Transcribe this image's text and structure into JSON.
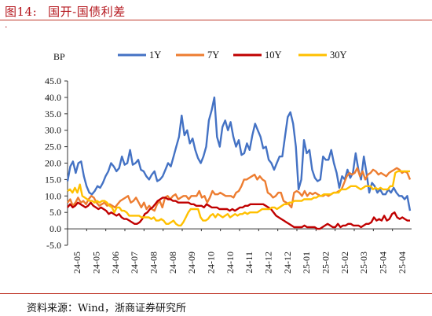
{
  "header": {
    "figure_no": "图14:",
    "title": "国开-国债利差"
  },
  "footer": {
    "source": "资料来源：Wind，浙商证券研究所"
  },
  "colors": {
    "title": "#b5171e",
    "rule": "#c0392b"
  },
  "chart_data": {
    "type": "line",
    "ylabel": "BP",
    "ylim": [
      -5,
      45
    ],
    "yticks": [
      "-5.0",
      "0.0",
      "5.0",
      "10.0",
      "15.0",
      "20.0",
      "25.0",
      "30.0",
      "35.0",
      "40.0",
      "45.0"
    ],
    "xticks": [
      "24-05",
      "24-05",
      "24-06",
      "24-07",
      "24-08",
      "24-08",
      "24-09",
      "24-10",
      "24-10",
      "24-11",
      "24-12",
      "24-12",
      "25-01",
      "25-02",
      "25-02",
      "25-03",
      "25-04",
      "25-04"
    ],
    "legend_position": "top",
    "grid": false,
    "series": [
      {
        "name": "1Y",
        "color": "#4472c4",
        "values": [
          14.5,
          19,
          20.5,
          17,
          20,
          20.5,
          16,
          13,
          11,
          10.5,
          11.5,
          13,
          12.5,
          14,
          16,
          17.5,
          20,
          19,
          17.5,
          18.5,
          22,
          19.5,
          20,
          24,
          19.5,
          20,
          21,
          18,
          17.5,
          16,
          15,
          16.5,
          17.5,
          14.5,
          15,
          16,
          18,
          20,
          19,
          22,
          25,
          28,
          34.5,
          28.5,
          30,
          26,
          27.5,
          24,
          21.5,
          20,
          22,
          25,
          33,
          36,
          40,
          28,
          25,
          31,
          33,
          30,
          32.5,
          28,
          25,
          27,
          22.5,
          23,
          26,
          24,
          28.5,
          32,
          30,
          28,
          24.5,
          25,
          21,
          20,
          18,
          20,
          22,
          22,
          28,
          34,
          35.5,
          32,
          25,
          12,
          15,
          27,
          23,
          24,
          18,
          15.5,
          14.5,
          15,
          22,
          21,
          21,
          24,
          20,
          17,
          12.5,
          16,
          15,
          18,
          15.5,
          17,
          23,
          18,
          15,
          22,
          17,
          11,
          14,
          13,
          11,
          12,
          10.5,
          10.5,
          12,
          11,
          12.5,
          11,
          10,
          10,
          9,
          10,
          5.5
        ]
      },
      {
        "name": "7Y",
        "color": "#ed7d31",
        "values": [
          8,
          9,
          7,
          8,
          9.5,
          8,
          8.5,
          7.5,
          9,
          10,
          9.5,
          8,
          7,
          7.5,
          8,
          7,
          7.5,
          7,
          6.5,
          7.5,
          8.5,
          9,
          9.5,
          10,
          8,
          8.5,
          9.5,
          8,
          6.5,
          8,
          6,
          7,
          6,
          5.5,
          7.5,
          8.5,
          6.5,
          9.5,
          10,
          9,
          10,
          10.5,
          9,
          9.5,
          10,
          10,
          9,
          10,
          10,
          10,
          11.5,
          9.5,
          10,
          8,
          9.5,
          11.5,
          10.5,
          10.5,
          11,
          10.5,
          10,
          10,
          10,
          9.5,
          11,
          11.5,
          13,
          15,
          15,
          15.5,
          16,
          16.5,
          15,
          16,
          15,
          14.5,
          11,
          10.5,
          9.5,
          10,
          11,
          11,
          8.5,
          8,
          7.5,
          6.5,
          11,
          11.5,
          11,
          10,
          11.5,
          10,
          11,
          10.5,
          11,
          10.5,
          10,
          10,
          10.5,
          10,
          10.5,
          11,
          11,
          11.5,
          12,
          14,
          16,
          17,
          16.5,
          17,
          18.5,
          16,
          17.5,
          15,
          16.5,
          17,
          18,
          17.5,
          16.5,
          17,
          16.5,
          16,
          17,
          17.5,
          18,
          18.5,
          18,
          17,
          17.5,
          17,
          15
        ]
      },
      {
        "name": "10Y",
        "color": "#c00000",
        "values": [
          6.5,
          7.5,
          6.5,
          7,
          8,
          7.5,
          7,
          6.5,
          7,
          8,
          7,
          6.5,
          6,
          6.5,
          6,
          5.5,
          4.5,
          5,
          4.5,
          4,
          4.5,
          3.5,
          3,
          3,
          2.5,
          2,
          1.5,
          1.5,
          2,
          3,
          4.5,
          5,
          6,
          6.5,
          7.5,
          8.5,
          9,
          9.5,
          9.5,
          9,
          9,
          8.5,
          8.5,
          8,
          8,
          8,
          8,
          8,
          7.5,
          7.5,
          7,
          7,
          7,
          6.5,
          7.5,
          7,
          6.5,
          6.5,
          6.5,
          6,
          6,
          6,
          6,
          5.5,
          6,
          5.5,
          6,
          6.5,
          6.5,
          7,
          7,
          7.5,
          7.5,
          7.5,
          7.5,
          7.5,
          7.5,
          7,
          6.5,
          6,
          5,
          4,
          3.5,
          3,
          2.5,
          2,
          1.5,
          1,
          0.5,
          0.5,
          0.5,
          0.5,
          1,
          0.5,
          0.5,
          0.5,
          0.5,
          0,
          0,
          0.5,
          1,
          1.5,
          1,
          0.5,
          0.5,
          1.5,
          0.5,
          1,
          1,
          1.5,
          1.5,
          1,
          1,
          1,
          0.5,
          1,
          1.5,
          1.5,
          2,
          3.5,
          2.5,
          3,
          2.5,
          4,
          2.5,
          3,
          4.5,
          5,
          3.5,
          3,
          3.5,
          3,
          2.5,
          2.5
        ]
      },
      {
        "name": "30Y",
        "color": "#ffc000",
        "values": [
          11.5,
          12,
          11,
          12.5,
          11,
          13.5,
          10,
          9.5,
          9,
          8.5,
          8.5,
          8,
          8.5,
          8,
          8.5,
          8.5,
          8,
          7,
          6.5,
          5,
          6.5,
          6.5,
          5.5,
          5.5,
          5,
          4,
          4,
          4,
          4,
          4,
          3.5,
          3.5,
          3.5,
          3.5,
          3,
          3.5,
          2.5,
          2.5,
          3,
          2.5,
          1.5,
          1.5,
          2,
          2.5,
          1.5,
          1,
          1,
          2,
          3.5,
          5,
          6,
          6,
          6,
          6,
          3.5,
          2.5,
          2.5,
          3,
          4,
          4.5,
          3.5,
          4.5,
          4,
          3.5,
          4,
          4.5,
          3.5,
          4,
          4.5,
          4,
          4.5,
          4.5,
          5,
          4.5,
          5,
          5,
          5,
          5,
          5.5,
          6,
          6,
          6,
          6,
          6.5,
          6.5,
          6,
          6.5,
          7,
          7.5,
          7.5,
          8,
          8,
          8.5,
          8.5,
          8.5,
          8.5,
          9,
          9,
          9,
          9,
          9.5,
          9.5,
          10,
          10,
          10.5,
          10.5,
          10.5,
          10.5,
          11,
          11,
          11,
          12,
          12,
          12,
          12.5,
          13,
          13,
          13,
          12.5,
          12,
          12.5,
          13,
          13,
          13,
          12,
          12.5,
          12,
          12.5,
          12,
          12,
          12,
          13,
          13,
          17,
          17.5,
          17.5,
          17.5,
          17.5,
          17.5,
          17.5
        ]
      }
    ]
  }
}
